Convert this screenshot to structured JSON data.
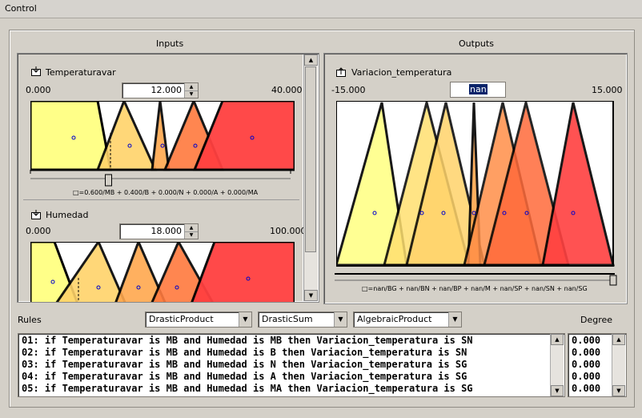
{
  "window": {
    "title": "Control"
  },
  "inputs": {
    "header": "Inputs",
    "vars": [
      {
        "name": "Temperaturavar",
        "min": "0.000",
        "max": "40.000",
        "value": "12.000",
        "formula": "□=0.600/MB + 0.400/B + 0.000/N + 0.000/A + 0.000/MA",
        "slider_fraction": 0.3
      },
      {
        "name": "Humedad",
        "min": "0.000",
        "max": "100.000",
        "value": "18.000"
      }
    ]
  },
  "outputs": {
    "header": "Outputs",
    "var": {
      "name": "Variacion_temperatura",
      "min": "-15.000",
      "max": "15.000",
      "value": "nan",
      "formula": "□=nan/BG + nan/BN + nan/BP + nan/M + nan/SP + nan/SN + nan/SG"
    }
  },
  "rules": {
    "label": "Rules",
    "degree_label": "Degree",
    "and_method": "DrasticProduct",
    "or_method": "DrasticSum",
    "impl_method": "AlgebraicProduct",
    "lines": [
      "01: if Temperaturavar is MB and Humedad is MB then Variacion_temperatura is SN",
      "02: if Temperaturavar is MB and Humedad is B then Variacion_temperatura is SN",
      "03: if Temperaturavar is MB and Humedad is N then Variacion_temperatura is SG",
      "04: if Temperaturavar is MB and Humedad is A then Variacion_temperatura is SG",
      "05: if Temperaturavar is MB and Humedad is MA then Variacion_temperatura is SG"
    ],
    "degrees": [
      "0.000",
      "0.000",
      "0.000",
      "0.000",
      "0.000"
    ]
  },
  "colors": {
    "mf_fills": [
      "#ffff88",
      "#ffd36a",
      "#ffa84e",
      "#ff7a3e",
      "#ff4040"
    ]
  },
  "icons": {
    "input_var": "import-icon",
    "output_var": "export-icon"
  }
}
